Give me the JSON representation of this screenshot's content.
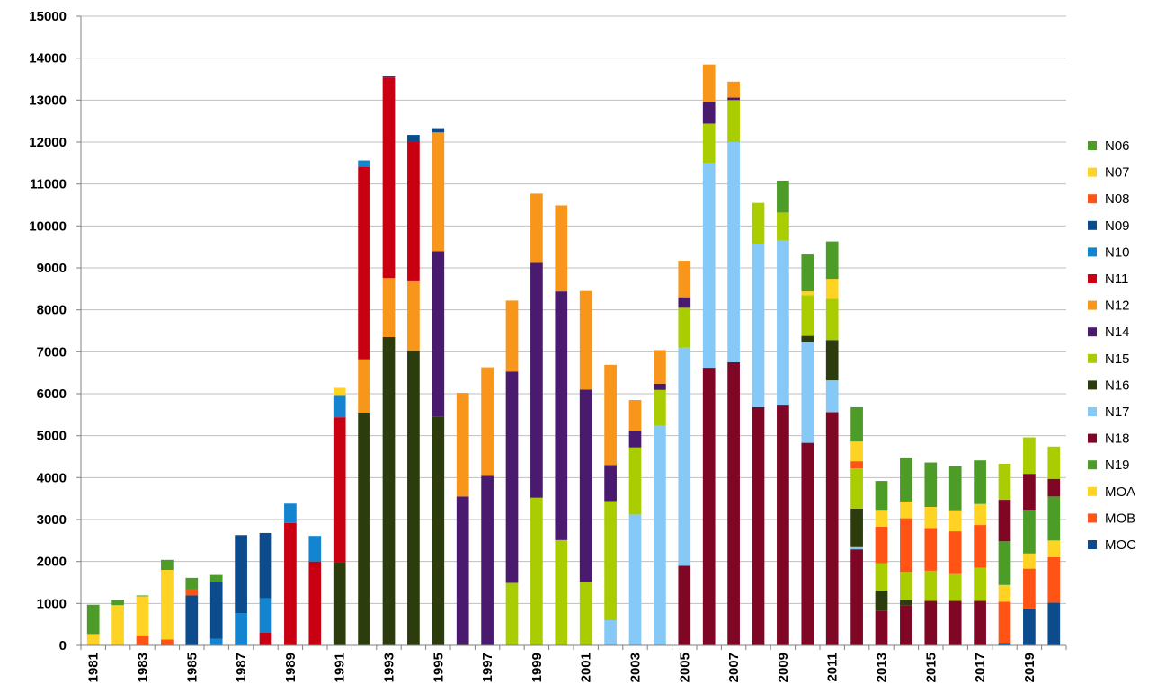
{
  "chart_data": {
    "type": "bar",
    "stacked": true,
    "title": "",
    "xlabel": "",
    "ylabel": "",
    "ylim": [
      0,
      15000
    ],
    "ytick_step": 1000,
    "grid": true,
    "legend_position": "right",
    "categories": [
      "1981",
      "1982",
      "1983",
      "1984",
      "1985",
      "1986",
      "1987",
      "1988",
      "1989",
      "1990",
      "1991",
      "1992",
      "1993",
      "1994",
      "1995",
      "1996",
      "1997",
      "1998",
      "1999",
      "2000",
      "2001",
      "2002",
      "2003",
      "2004",
      "2005",
      "2006",
      "2007",
      "2008",
      "2009",
      "2010",
      "2011",
      "2012",
      "2013",
      "2014",
      "2015",
      "2016",
      "2017",
      "2018",
      "2019",
      "2020"
    ],
    "xtick_labels": [
      "1981",
      "",
      "1983",
      "",
      "1985",
      "",
      "1987",
      "",
      "1989",
      "",
      "1991",
      "",
      "1993",
      "",
      "1995",
      "",
      "1997",
      "",
      "1999",
      "",
      "2001",
      "",
      "2003",
      "",
      "2005",
      "",
      "2007",
      "",
      "2009",
      "",
      "2011",
      "",
      "2013",
      "",
      "2015",
      "",
      "2017",
      "",
      "2019",
      ""
    ],
    "series": [
      {
        "name": "MOC",
        "color": "#0D4C8C",
        "values": [
          0,
          0,
          0,
          0,
          0,
          0,
          0,
          0,
          0,
          0,
          0,
          0,
          0,
          0,
          0,
          0,
          0,
          0,
          0,
          0,
          0,
          0,
          0,
          0,
          0,
          0,
          0,
          0,
          0,
          0,
          0,
          0,
          0,
          0,
          0,
          0,
          0,
          60,
          880,
          1020
        ]
      },
      {
        "name": "MOB",
        "color": "#FF5416",
        "values": [
          0,
          0,
          0,
          0,
          0,
          0,
          0,
          0,
          0,
          0,
          0,
          0,
          0,
          0,
          0,
          0,
          0,
          0,
          0,
          0,
          0,
          0,
          0,
          0,
          0,
          0,
          0,
          0,
          0,
          0,
          0,
          0,
          0,
          0,
          0,
          0,
          0,
          980,
          950,
          1080
        ]
      },
      {
        "name": "MOA",
        "color": "#FFD324",
        "values": [
          0,
          0,
          0,
          0,
          0,
          0,
          0,
          0,
          0,
          0,
          0,
          0,
          0,
          0,
          0,
          0,
          0,
          0,
          0,
          0,
          0,
          0,
          0,
          0,
          0,
          0,
          0,
          0,
          0,
          0,
          0,
          0,
          0,
          0,
          0,
          0,
          0,
          400,
          360,
          400
        ]
      },
      {
        "name": "N19",
        "color": "#4C9C27",
        "values": [
          0,
          0,
          0,
          0,
          0,
          0,
          0,
          0,
          0,
          0,
          0,
          0,
          0,
          0,
          0,
          0,
          0,
          0,
          0,
          0,
          0,
          0,
          0,
          0,
          0,
          0,
          0,
          0,
          0,
          0,
          0,
          0,
          0,
          0,
          0,
          0,
          0,
          1040,
          1040,
          1050
        ]
      },
      {
        "name": "N18",
        "color": "#7F0725",
        "values": [
          0,
          0,
          0,
          0,
          0,
          0,
          0,
          0,
          0,
          0,
          0,
          0,
          0,
          0,
          0,
          0,
          0,
          0,
          0,
          0,
          0,
          0,
          0,
          0,
          1900,
          6620,
          6750,
          5680,
          5720,
          4830,
          5560,
          2290,
          830,
          960,
          1060,
          1060,
          1060,
          990,
          860,
          420
        ]
      },
      {
        "name": "N17",
        "color": "#86C9F7",
        "values": [
          0,
          0,
          0,
          0,
          0,
          0,
          0,
          0,
          0,
          0,
          0,
          0,
          0,
          0,
          0,
          0,
          0,
          0,
          0,
          0,
          0,
          600,
          3120,
          5240,
          5200,
          4880,
          5250,
          3880,
          3930,
          2400,
          760,
          50,
          0,
          0,
          0,
          0,
          0,
          0,
          0,
          0
        ]
      },
      {
        "name": "N16",
        "color": "#2C3C0C",
        "values": [
          0,
          0,
          0,
          0,
          0,
          0,
          0,
          0,
          0,
          0,
          1990,
          5530,
          7350,
          7020,
          5460,
          30,
          0,
          0,
          0,
          0,
          0,
          0,
          0,
          0,
          0,
          0,
          0,
          0,
          0,
          150,
          960,
          920,
          480,
          120,
          0,
          0,
          0,
          0,
          0,
          0
        ]
      },
      {
        "name": "N15",
        "color": "#A9CD00",
        "values": [
          0,
          0,
          0,
          0,
          0,
          0,
          0,
          0,
          0,
          0,
          0,
          0,
          0,
          0,
          0,
          0,
          0,
          1490,
          3520,
          2510,
          1510,
          2840,
          1600,
          850,
          950,
          940,
          1000,
          990,
          670,
          970,
          980,
          960,
          650,
          670,
          720,
          640,
          790,
          860,
          870,
          770
        ]
      },
      {
        "name": "N14",
        "color": "#4A1A6E",
        "values": [
          0,
          0,
          0,
          0,
          0,
          0,
          0,
          0,
          0,
          0,
          0,
          0,
          0,
          0,
          3940,
          3520,
          4040,
          5040,
          5600,
          5930,
          4590,
          860,
          390,
          150,
          250,
          520,
          60,
          0,
          0,
          0,
          0,
          0,
          0,
          0,
          0,
          0,
          0,
          0,
          0,
          0
        ]
      },
      {
        "name": "N12",
        "color": "#F7961A",
        "values": [
          0,
          0,
          0,
          0,
          0,
          0,
          0,
          0,
          0,
          0,
          0,
          1290,
          1410,
          1660,
          2830,
          2470,
          2590,
          1690,
          1650,
          2050,
          2350,
          2390,
          740,
          800,
          870,
          890,
          380,
          0,
          0,
          0,
          0,
          0,
          0,
          0,
          0,
          0,
          0,
          0,
          0,
          0
        ]
      },
      {
        "name": "N11",
        "color": "#C90011",
        "values": [
          0,
          0,
          0,
          0,
          0,
          0,
          0,
          300,
          2920,
          2000,
          3450,
          4580,
          4780,
          3330,
          0,
          0,
          0,
          0,
          0,
          0,
          0,
          0,
          0,
          0,
          0,
          0,
          0,
          0,
          0,
          0,
          0,
          0,
          0,
          0,
          0,
          0,
          0,
          0,
          0,
          0
        ]
      },
      {
        "name": "N10",
        "color": "#1384D0",
        "values": [
          0,
          0,
          0,
          0,
          0,
          160,
          770,
          820,
          460,
          610,
          510,
          160,
          0,
          0,
          0,
          0,
          0,
          0,
          0,
          0,
          0,
          0,
          0,
          0,
          0,
          0,
          0,
          0,
          0,
          0,
          0,
          0,
          0,
          0,
          0,
          0,
          0,
          0,
          0,
          0
        ]
      },
      {
        "name": "N09",
        "color": "#0D4C8C",
        "values": [
          0,
          0,
          0,
          0,
          1190,
          1360,
          1860,
          1560,
          0,
          0,
          0,
          0,
          30,
          160,
          100,
          0,
          0,
          0,
          0,
          0,
          0,
          0,
          0,
          0,
          0,
          0,
          0,
          0,
          0,
          0,
          0,
          0,
          0,
          0,
          0,
          0,
          0,
          0,
          0,
          0
        ]
      },
      {
        "name": "N08",
        "color": "#FF5416",
        "values": [
          0,
          0,
          220,
          140,
          140,
          0,
          0,
          0,
          0,
          0,
          0,
          0,
          0,
          0,
          0,
          0,
          0,
          0,
          0,
          0,
          0,
          0,
          0,
          0,
          0,
          0,
          0,
          0,
          0,
          0,
          0,
          170,
          870,
          1280,
          1020,
          1020,
          1020,
          0,
          0,
          0
        ]
      },
      {
        "name": "N07",
        "color": "#FFD324",
        "values": [
          270,
          960,
          950,
          1660,
          0,
          0,
          0,
          0,
          0,
          0,
          190,
          0,
          0,
          0,
          0,
          0,
          0,
          0,
          0,
          0,
          0,
          0,
          0,
          0,
          0,
          0,
          0,
          0,
          0,
          90,
          480,
          470,
          400,
          400,
          500,
          500,
          500,
          0,
          0,
          0
        ]
      },
      {
        "name": "N06",
        "color": "#4C9C27",
        "values": [
          700,
          130,
          20,
          240,
          280,
          160,
          0,
          0,
          0,
          0,
          0,
          0,
          0,
          0,
          0,
          0,
          0,
          0,
          0,
          0,
          0,
          0,
          0,
          0,
          0,
          0,
          0,
          0,
          760,
          880,
          890,
          820,
          690,
          1050,
          1060,
          1050,
          1040,
          0,
          0,
          0
        ]
      }
    ]
  }
}
